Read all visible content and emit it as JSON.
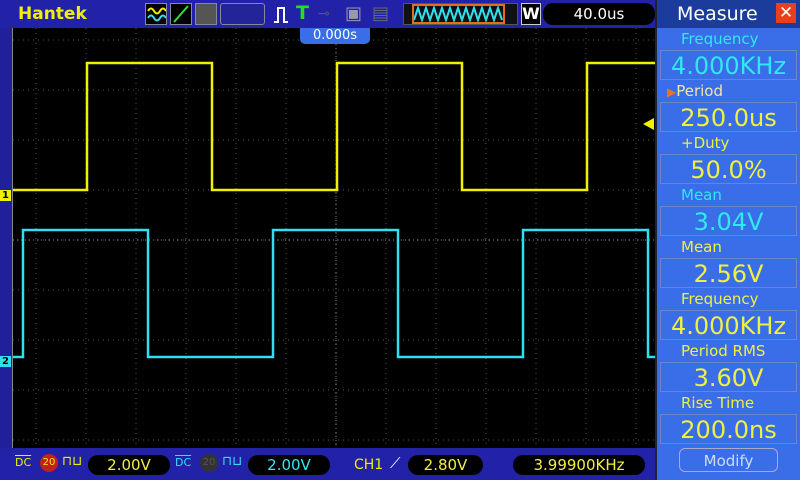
{
  "header": {
    "brand": "Hantek",
    "timebase": "40.0us",
    "mode_label": "W",
    "trigger_position": "0.000s"
  },
  "icons": [
    "dual-wave-icon",
    "xy-icon",
    "persist-icon",
    "trigger-pulse-icon",
    "trigger-t-icon",
    "key-icon",
    "save-icon",
    "print-icon"
  ],
  "bottom": {
    "ch1": {
      "coupling": "DC",
      "bw_limit": "20",
      "volts": "2.00V"
    },
    "ch2": {
      "coupling": "DC",
      "bw_limit": "20",
      "volts": "2.00V"
    },
    "trigger": {
      "source": "CH1",
      "level": "2.80V"
    },
    "frequency": "3.99900KHz"
  },
  "channels": {
    "ch1": {
      "marker": "1",
      "color": "#f0f000"
    },
    "ch2": {
      "marker": "2",
      "color": "#30e0f0"
    }
  },
  "measure": {
    "title": "Measure",
    "close": "✕",
    "modify": "Modify",
    "items": [
      {
        "label": "Frequency",
        "value": "4.000KHz",
        "color": "cyan",
        "selected": false
      },
      {
        "label": "Period",
        "value": "250.0us",
        "color": "yellow",
        "selected": true
      },
      {
        "label": "+Duty",
        "value": "50.0%",
        "color": "yellow",
        "selected": false
      },
      {
        "label": "Mean",
        "value": "3.04V",
        "color": "cyan",
        "selected": false
      },
      {
        "label": "Mean",
        "value": "2.56V",
        "color": "yellow",
        "selected": false
      },
      {
        "label": "Frequency",
        "value": "4.000KHz",
        "color": "yellow",
        "selected": false
      },
      {
        "label": "Period RMS",
        "value": "3.60V",
        "color": "yellow",
        "selected": false
      },
      {
        "label": "Rise Time",
        "value": "200.0ns",
        "color": "yellow",
        "selected": false
      }
    ]
  }
}
